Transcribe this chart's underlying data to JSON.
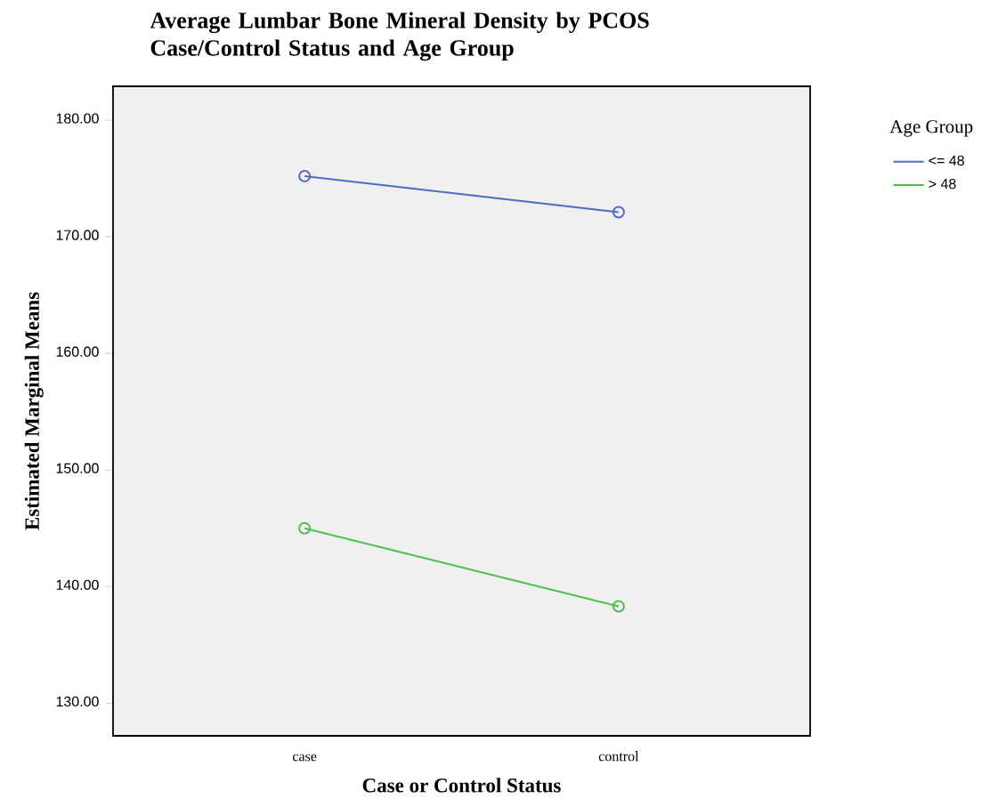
{
  "chart_data": {
    "type": "line",
    "title": "Average Lumbar Bone Mineral Density by PCOS Case/Control Status and Age Group",
    "xlabel": "Case or Control Status",
    "ylabel": "Estimated Marginal Means",
    "legend_title": "Age Group",
    "categories": [
      "case",
      "control"
    ],
    "series": [
      {
        "name": "<= 48",
        "color": "#4a6cc4",
        "values": [
          175.2,
          172.1
        ]
      },
      {
        "name": "> 48",
        "color": "#4cc04c",
        "values": [
          145.0,
          138.3
        ]
      }
    ],
    "ylim": [
      127.2,
      182.9
    ],
    "yticks": [
      {
        "value": 130,
        "label": "130.00"
      },
      {
        "value": 140,
        "label": "140.00"
      },
      {
        "value": 150,
        "label": "150.00"
      },
      {
        "value": 160,
        "label": "160.00"
      },
      {
        "value": 170,
        "label": "170.00"
      },
      {
        "value": 180,
        "label": "180.00"
      }
    ],
    "marker": "circle",
    "line_style": "solid",
    "legend": "top right",
    "grid": false
  }
}
